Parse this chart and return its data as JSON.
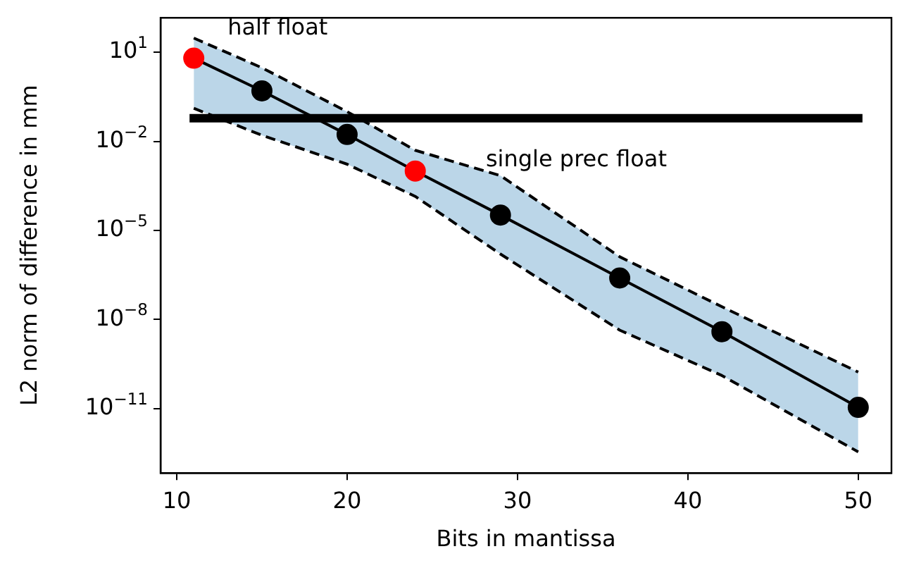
{
  "chart_data": {
    "type": "line",
    "xlabel": "Bits in mantissa",
    "ylabel": "L2 norm of difference in mm",
    "log": "y",
    "marker": "circle",
    "grid": false,
    "xlim": [
      9.05,
      51.95
    ],
    "xticks": [
      10,
      20,
      30,
      40,
      50
    ],
    "ylim": [
      6.8e-14,
      145
    ],
    "yticks": [
      {
        "value": 10,
        "label": "10$^{1}$"
      },
      {
        "value": 0.01,
        "label": "10$^{−2}$"
      },
      {
        "value": 1e-05,
        "label": "10$^{−5}$"
      },
      {
        "value": 1e-08,
        "label": "10$^{−8}$"
      },
      {
        "value": 1e-11,
        "label": "10$^{−11}$"
      }
    ],
    "series": [
      {
        "x": [
          11,
          15,
          20,
          24,
          29,
          36,
          42,
          50
        ],
        "values": [
          6.3,
          0.5,
          0.017,
          0.001,
          3.3e-05,
          2.5e-07,
          3.9e-09,
          1.1e-11
        ],
        "color": "#000000",
        "colors": [
          "#ff0000",
          "#000000",
          "#000000",
          "#ff0000",
          "#000000",
          "#000000",
          "#000000",
          "#000000"
        ],
        "lower": [
          0.13,
          0.016,
          0.0017,
          0.00014,
          1.6e-06,
          4.4e-09,
          1.3e-10,
          3.5e-13
        ],
        "upper": [
          30,
          3,
          0.1,
          0.005,
          0.0007,
          1.3e-06,
          2.7e-08,
          1.7e-10
        ]
      },
      {
        "type": "line",
        "x": [
          11,
          15,
          20,
          24,
          29,
          36,
          42,
          50
        ],
        "values": [
          0.13,
          0.016,
          0.0017,
          0.00014,
          1.6e-06,
          4.4e-09,
          1.3e-10,
          3.5e-13
        ],
        "color": "#000000",
        "marker": "none",
        "line_style": "dashed"
      },
      {
        "type": "line",
        "x": [
          11,
          15,
          20,
          24,
          29,
          36,
          42,
          50
        ],
        "values": [
          30,
          3,
          0.1,
          0.005,
          0.0007,
          1.3e-06,
          2.7e-08,
          1.7e-10
        ],
        "color": "#000000",
        "marker": "none",
        "line_style": "dashed"
      },
      {
        "type": "line",
        "x": [
          11,
          50
        ],
        "values": [
          0.06,
          0.06
        ],
        "color": "#000000",
        "marker": "none",
        "line_style": "solid"
      }
    ],
    "annotations": [
      {
        "text": "half float",
        "x": 11,
        "y": 6.3
      },
      "single prec float"
    ]
  }
}
